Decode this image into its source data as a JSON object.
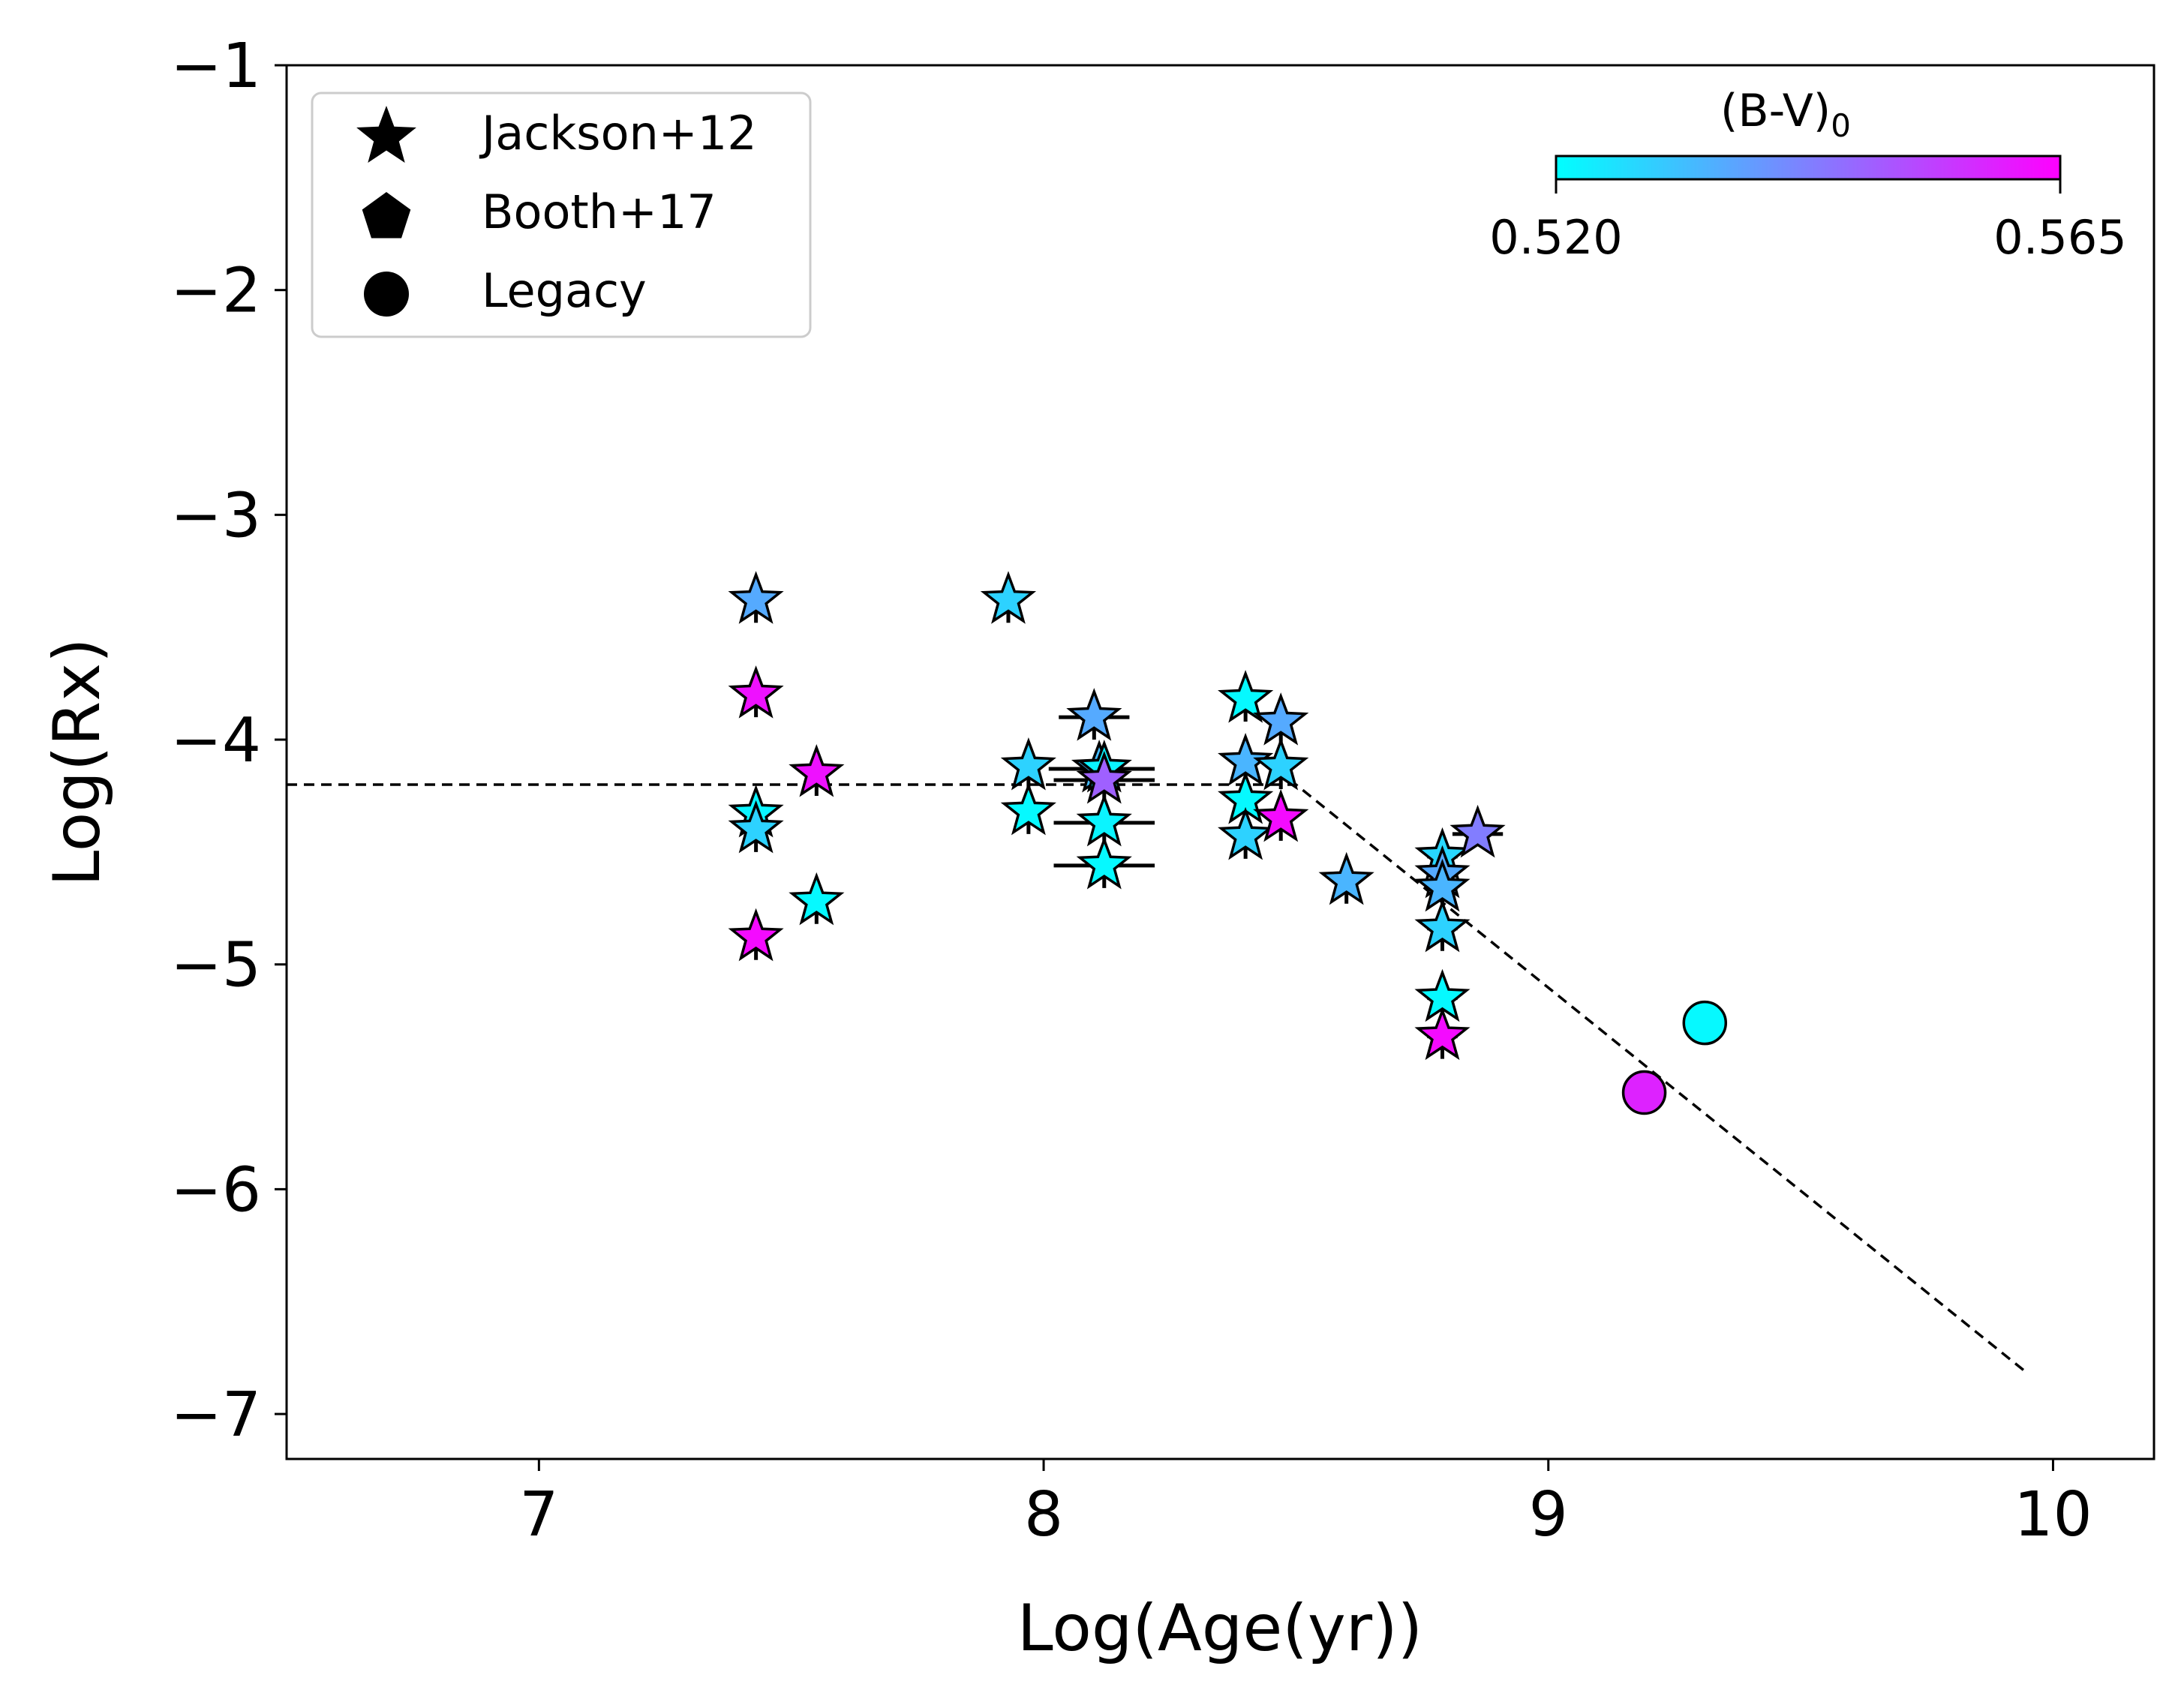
{
  "chart_data": {
    "type": "scatter",
    "title": "",
    "xlabel": "Log(Age(yr))",
    "ylabel": "Log(Rx)",
    "xlim": [
      6.5,
      10.2
    ],
    "ylim": [
      -7.2,
      -1
    ],
    "xticks": [
      7,
      8,
      9,
      10
    ],
    "yticks": [
      -1,
      -2,
      -3,
      -4,
      -5,
      -6,
      -7
    ],
    "xtick_labels": [
      "7",
      "8",
      "9",
      "10"
    ],
    "ytick_labels": [
      "−1",
      "−2",
      "−3",
      "−4",
      "−5",
      "−6",
      "−7"
    ],
    "grid": false,
    "legend": {
      "placement": "top-left",
      "entries": [
        {
          "label": "Jackson+12",
          "marker": "star"
        },
        {
          "label": "Booth+17",
          "marker": "pentagon"
        },
        {
          "label": "Legacy",
          "marker": "circle"
        }
      ]
    },
    "colorbar": {
      "label_main": "(B-V)",
      "label_sub": "0",
      "min": 0.52,
      "max": 0.565,
      "min_label": "0.520",
      "max_label": "0.565",
      "colors": [
        "#00ffff",
        "#ff00ff"
      ],
      "placement": "top-right"
    },
    "fit_line": {
      "style": "dashed",
      "points": [
        [
          6.5,
          -4.2
        ],
        [
          8.5,
          -4.2
        ],
        [
          9.95,
          -6.82
        ]
      ]
    },
    "series": [
      {
        "name": "Jackson+12",
        "marker": "star",
        "points": [
          {
            "x": 7.43,
            "y": -3.38,
            "bv": 0.535,
            "yerr": 0.1
          },
          {
            "x": 7.43,
            "y": -3.8,
            "bv": 0.562,
            "yerr": 0.1
          },
          {
            "x": 7.43,
            "y": -4.33,
            "bv": 0.522,
            "yerr": 0.1
          },
          {
            "x": 7.43,
            "y": -4.4,
            "bv": 0.528,
            "yerr": 0.1
          },
          {
            "x": 7.43,
            "y": -4.88,
            "bv": 0.563,
            "yerr": 0.1
          },
          {
            "x": 7.55,
            "y": -4.15,
            "bv": 0.562,
            "yerr": 0.1
          },
          {
            "x": 7.55,
            "y": -4.72,
            "bv": 0.521,
            "yerr": 0.1
          },
          {
            "x": 7.93,
            "y": -3.38,
            "bv": 0.528,
            "yerr": 0.1
          },
          {
            "x": 7.97,
            "y": -4.12,
            "bv": 0.528,
            "yerr": 0.1
          },
          {
            "x": 7.97,
            "y": -4.32,
            "bv": 0.521,
            "yerr": 0.1
          },
          {
            "x": 8.1,
            "y": -3.9,
            "bv": 0.535,
            "yerr": 0.1,
            "xerr": 0.07
          },
          {
            "x": 8.11,
            "y": -4.13,
            "bv": 0.532,
            "yerr": 0.1,
            "xerr": 0.1
          },
          {
            "x": 8.12,
            "y": -4.13,
            "bv": 0.522,
            "yerr": 0.1,
            "xerr": 0.1
          },
          {
            "x": 8.12,
            "y": -4.18,
            "bv": 0.548,
            "yerr": 0.1,
            "xerr": 0.1
          },
          {
            "x": 8.12,
            "y": -4.37,
            "bv": 0.522,
            "yerr": 0.1,
            "xerr": 0.1
          },
          {
            "x": 8.12,
            "y": -4.56,
            "bv": 0.521,
            "yerr": 0.1,
            "xerr": 0.1
          },
          {
            "x": 8.4,
            "y": -3.82,
            "bv": 0.521,
            "yerr": 0.1
          },
          {
            "x": 8.4,
            "y": -4.1,
            "bv": 0.533,
            "yerr": 0.1
          },
          {
            "x": 8.4,
            "y": -4.27,
            "bv": 0.521,
            "yerr": 0.1
          },
          {
            "x": 8.4,
            "y": -4.43,
            "bv": 0.528,
            "yerr": 0.1
          },
          {
            "x": 8.47,
            "y": -3.92,
            "bv": 0.535,
            "yerr": 0.1
          },
          {
            "x": 8.47,
            "y": -4.12,
            "bv": 0.528,
            "yerr": 0.1
          },
          {
            "x": 8.47,
            "y": -4.35,
            "bv": 0.563,
            "yerr": 0.1
          },
          {
            "x": 8.6,
            "y": -4.63,
            "bv": 0.533,
            "yerr": 0.1
          },
          {
            "x": 8.79,
            "y": -4.52,
            "bv": 0.527,
            "yerr": 0.1,
            "xerr": 0.03
          },
          {
            "x": 8.79,
            "y": -4.6,
            "bv": 0.535,
            "yerr": 0.1,
            "xerr": 0.03
          },
          {
            "x": 8.79,
            "y": -4.66,
            "bv": 0.533,
            "yerr": 0.1,
            "xerr": 0.03
          },
          {
            "x": 8.79,
            "y": -4.84,
            "bv": 0.528,
            "yerr": 0.1,
            "xerr": 0.03
          },
          {
            "x": 8.79,
            "y": -5.15,
            "bv": 0.521,
            "yerr": 0.1,
            "xerr": 0.03
          },
          {
            "x": 8.79,
            "y": -5.32,
            "bv": 0.563,
            "yerr": 0.1,
            "xerr": 0.03
          },
          {
            "x": 8.86,
            "y": -4.42,
            "bv": 0.543,
            "yerr": 0.05,
            "xerr": 0.05
          }
        ]
      },
      {
        "name": "Booth+17",
        "marker": "pentagon",
        "points": []
      },
      {
        "name": "Legacy",
        "marker": "circle",
        "points": [
          {
            "x": 9.19,
            "y": -5.57,
            "bv": 0.559
          },
          {
            "x": 9.31,
            "y": -5.26,
            "bv": 0.521
          }
        ]
      }
    ]
  }
}
